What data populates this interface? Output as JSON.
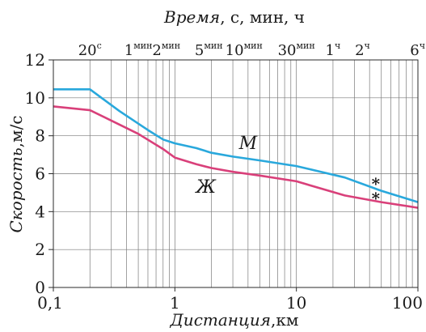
{
  "chart_data": {
    "type": "line",
    "title": "",
    "xlabel": "Дистанция",
    "xlabel_unit": ",км",
    "ylabel": "Скорость",
    "ylabel_unit": ",м/с",
    "top_axis_label": "Время",
    "top_axis_units": ",  с,  мин,  ч",
    "x_scale": "log",
    "xlim": [
      0.1,
      100
    ],
    "ylim": [
      0,
      12
    ],
    "grid": true,
    "x_tick_labels": [
      {
        "value": 0.1,
        "label": "0,1"
      },
      {
        "value": 1,
        "label": "1"
      },
      {
        "value": 10,
        "label": "10"
      },
      {
        "value": 100,
        "label": "100"
      }
    ],
    "y_ticks": [
      0,
      2,
      4,
      6,
      8,
      10,
      12
    ],
    "top_ticks": [
      {
        "x": 0.2,
        "num": "20",
        "unit": "с"
      },
      {
        "x": 0.5,
        "num": "1",
        "unit": "мин"
      },
      {
        "x": 0.85,
        "num": "2",
        "unit": "мин"
      },
      {
        "x": 1.9,
        "num": "5",
        "unit": "мин"
      },
      {
        "x": 3.7,
        "num": "10",
        "unit": "мин"
      },
      {
        "x": 10,
        "num": "30",
        "unit": "мин"
      },
      {
        "x": 20,
        "num": "1",
        "unit": "ч"
      },
      {
        "x": 35,
        "num": "2",
        "unit": "ч"
      },
      {
        "x": 97,
        "num": "6",
        "unit": "ч"
      }
    ],
    "series": [
      {
        "name": "М",
        "color": "#29a8dc",
        "points": [
          [
            0.1,
            10.45
          ],
          [
            0.2,
            10.45
          ],
          [
            0.35,
            9.3
          ],
          [
            0.6,
            8.3
          ],
          [
            0.8,
            7.8
          ],
          [
            1,
            7.6
          ],
          [
            1.5,
            7.35
          ],
          [
            2,
            7.1
          ],
          [
            3,
            6.9
          ],
          [
            5,
            6.7
          ],
          [
            10,
            6.4
          ],
          [
            25,
            5.8
          ],
          [
            50,
            5.1
          ],
          [
            100,
            4.5
          ]
        ]
      },
      {
        "name": "Ж",
        "color": "#d9407a",
        "points": [
          [
            0.1,
            9.55
          ],
          [
            0.2,
            9.35
          ],
          [
            0.3,
            8.8
          ],
          [
            0.5,
            8.1
          ],
          [
            0.8,
            7.3
          ],
          [
            1,
            6.85
          ],
          [
            1.5,
            6.5
          ],
          [
            2,
            6.3
          ],
          [
            3,
            6.1
          ],
          [
            5,
            5.9
          ],
          [
            10,
            5.6
          ],
          [
            25,
            4.85
          ],
          [
            50,
            4.5
          ],
          [
            100,
            4.2
          ]
        ]
      }
    ],
    "markers": [
      {
        "x": 45,
        "y": 5.5,
        "symbol": "*",
        "series": "М"
      },
      {
        "x": 45,
        "y": 4.75,
        "symbol": "*",
        "series": "Ж"
      }
    ],
    "series_labels": [
      {
        "text": "М",
        "x": 4.0,
        "y": 7.3
      },
      {
        "text": "Ж",
        "x": 1.8,
        "y": 5.0
      }
    ]
  }
}
